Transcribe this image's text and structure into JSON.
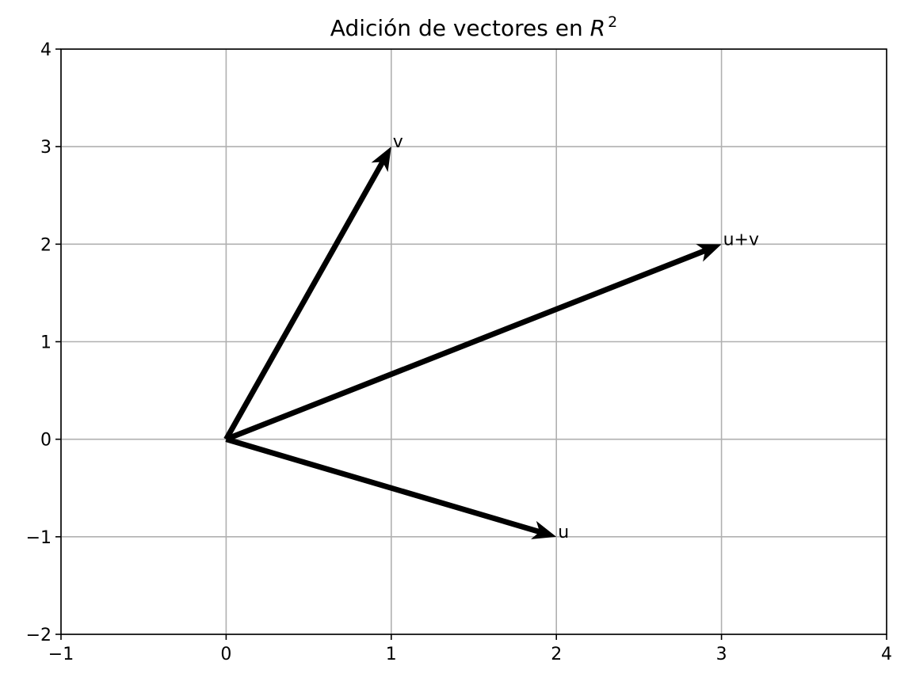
{
  "chart_data": {
    "type": "vector",
    "title": "Adición de vectores en ",
    "title_math_base": "R",
    "title_math_sup": "2",
    "xlabel": "",
    "ylabel": "",
    "xlim": [
      -1,
      4
    ],
    "ylim": [
      -2,
      4
    ],
    "xticks": [
      -1,
      0,
      1,
      2,
      3,
      4
    ],
    "yticks": [
      -2,
      -1,
      0,
      1,
      2,
      3,
      4
    ],
    "xtick_labels": [
      "−1",
      "0",
      "1",
      "2",
      "3",
      "4"
    ],
    "ytick_labels": [
      "−2",
      "−1",
      "0",
      "1",
      "2",
      "3",
      "4"
    ],
    "grid": true,
    "vectors": [
      {
        "label": "v",
        "origin": [
          0,
          0
        ],
        "tip": [
          1,
          3
        ],
        "color": "#000000"
      },
      {
        "label": "u+v",
        "origin": [
          0,
          0
        ],
        "tip": [
          3,
          2
        ],
        "color": "#000000"
      },
      {
        "label": "u",
        "origin": [
          0,
          0
        ],
        "tip": [
          2,
          -1
        ],
        "color": "#000000"
      }
    ]
  }
}
